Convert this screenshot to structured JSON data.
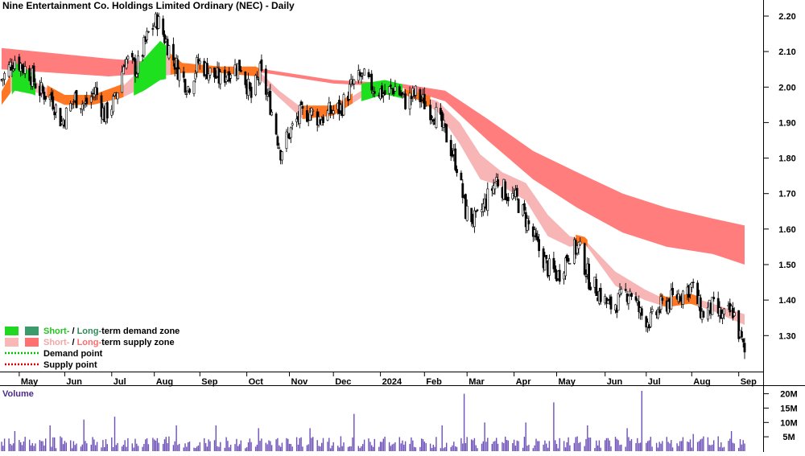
{
  "chart_data": {
    "type": "candlestick",
    "title": "Nine Entertainment Co. Holdings Limited Ordinary (NEC) - Daily",
    "price_axis": {
      "ticks": [
        "2.20",
        "2.10",
        "2.00",
        "1.90",
        "1.80",
        "1.70",
        "1.60",
        "1.50",
        "1.40",
        "1.30"
      ],
      "ylim": [
        1.22,
        2.24
      ]
    },
    "volume_axis": {
      "title": "Volume",
      "ticks": [
        "20M",
        "15M",
        "10M",
        "5M"
      ],
      "ylim": [
        0,
        21
      ]
    },
    "x_axis": {
      "ticks": [
        "May",
        "Jun",
        "Jul",
        "Aug",
        "Sep",
        "Oct",
        "Nov",
        "Dec",
        "2024",
        "Feb",
        "Mar",
        "Apr",
        "May",
        "Jun",
        "Jul",
        "Aug",
        "Sep"
      ],
      "start": "2023-04-19",
      "end": "2024-09-06"
    },
    "legend": {
      "placement": "bottom-left",
      "items": [
        {
          "parts": [
            {
              "text": "Short-",
              "color": "#22c422"
            },
            {
              "text": " / ",
              "color": "#000000"
            },
            {
              "text": "Long-",
              "color": "#2e8b57"
            },
            {
              "text": "term demand zone",
              "color": "#000000"
            }
          ],
          "swatches": [
            "#1fd81f",
            "#3b9b6a"
          ]
        },
        {
          "parts": [
            {
              "text": "Short-",
              "color": "#f4a6a6"
            },
            {
              "text": " / ",
              "color": "#000000"
            },
            {
              "text": "Long-",
              "color": "#ff6b6b"
            },
            {
              "text": "term supply zone",
              "color": "#000000"
            }
          ],
          "swatches": [
            "#f8b8b8",
            "#ff7070"
          ]
        },
        {
          "parts": [
            {
              "text": "Demand point",
              "color": "#000000"
            }
          ],
          "dotted": "#00c000"
        },
        {
          "parts": [
            {
              "text": "Supply point",
              "color": "#000000"
            }
          ],
          "dotted": "#d00000"
        }
      ]
    },
    "price_path": [
      [
        "2023-04-19",
        2.02
      ],
      [
        "2023-04-28",
        2.08
      ],
      [
        "2023-05-08",
        2.04
      ],
      [
        "2023-05-15",
        1.99
      ],
      [
        "2023-05-23",
        1.97
      ],
      [
        "2023-05-30",
        1.9
      ],
      [
        "2023-06-08",
        1.97
      ],
      [
        "2023-06-15",
        1.95
      ],
      [
        "2023-06-22",
        1.99
      ],
      [
        "2023-06-28",
        1.92
      ],
      [
        "2023-07-05",
        1.96
      ],
      [
        "2023-07-12",
        2.08
      ],
      [
        "2023-07-20",
        2.05
      ],
      [
        "2023-07-28",
        2.15
      ],
      [
        "2023-08-03",
        2.19
      ],
      [
        "2023-08-10",
        2.12
      ],
      [
        "2023-08-17",
        2.05
      ],
      [
        "2023-08-24",
        2.0
      ],
      [
        "2023-08-31",
        2.07
      ],
      [
        "2023-09-08",
        2.04
      ],
      [
        "2023-09-15",
        2.02
      ],
      [
        "2023-09-22",
        2.05
      ],
      [
        "2023-09-29",
        2.06
      ],
      [
        "2023-10-06",
        1.97
      ],
      [
        "2023-10-12",
        2.04
      ],
      [
        "2023-10-19",
        1.95
      ],
      [
        "2023-10-26",
        1.82
      ],
      [
        "2023-11-01",
        1.87
      ],
      [
        "2023-11-08",
        1.92
      ],
      [
        "2023-11-15",
        1.93
      ],
      [
        "2023-11-22",
        1.91
      ],
      [
        "2023-11-29",
        1.93
      ],
      [
        "2023-12-06",
        1.94
      ],
      [
        "2023-12-13",
        2.0
      ],
      [
        "2023-12-20",
        2.03
      ],
      [
        "2023-12-28",
        2.0
      ],
      [
        "2024-01-05",
        1.98
      ],
      [
        "2024-01-12",
        2.0
      ],
      [
        "2024-01-19",
        1.96
      ],
      [
        "2024-01-26",
        1.98
      ],
      [
        "2024-02-02",
        1.95
      ],
      [
        "2024-02-09",
        1.92
      ],
      [
        "2024-02-16",
        1.86
      ],
      [
        "2024-02-23",
        1.78
      ],
      [
        "2024-02-29",
        1.65
      ],
      [
        "2024-03-07",
        1.62
      ],
      [
        "2024-03-14",
        1.68
      ],
      [
        "2024-03-21",
        1.74
      ],
      [
        "2024-03-28",
        1.7
      ],
      [
        "2024-04-04",
        1.68
      ],
      [
        "2024-04-11",
        1.62
      ],
      [
        "2024-04-18",
        1.55
      ],
      [
        "2024-04-25",
        1.49
      ],
      [
        "2024-05-02",
        1.47
      ],
      [
        "2024-05-09",
        1.53
      ],
      [
        "2024-05-16",
        1.55
      ],
      [
        "2024-05-23",
        1.46
      ],
      [
        "2024-05-30",
        1.42
      ],
      [
        "2024-06-06",
        1.38
      ],
      [
        "2024-06-13",
        1.4
      ],
      [
        "2024-06-20",
        1.43
      ],
      [
        "2024-06-27",
        1.36
      ],
      [
        "2024-07-04",
        1.34
      ],
      [
        "2024-07-11",
        1.38
      ],
      [
        "2024-07-18",
        1.4
      ],
      [
        "2024-07-25",
        1.42
      ],
      [
        "2024-08-01",
        1.44
      ],
      [
        "2024-08-08",
        1.36
      ],
      [
        "2024-08-15",
        1.38
      ],
      [
        "2024-08-22",
        1.35
      ],
      [
        "2024-08-29",
        1.37
      ],
      [
        "2024-09-06",
        1.25
      ]
    ],
    "zones": {
      "long": {
        "upper": [
          [
            "2023-04-19",
            2.11
          ],
          [
            "2023-07-01",
            2.08
          ],
          [
            "2023-09-01",
            2.06
          ],
          [
            "2023-10-15",
            2.05
          ],
          [
            "2023-12-01",
            2.02
          ],
          [
            "2024-01-15",
            2.01
          ],
          [
            "2024-02-15",
            1.99
          ],
          [
            "2024-03-15",
            1.91
          ],
          [
            "2024-04-15",
            1.82
          ],
          [
            "2024-05-15",
            1.76
          ],
          [
            "2024-06-15",
            1.7
          ],
          [
            "2024-07-15",
            1.66
          ],
          [
            "2024-08-15",
            1.63
          ],
          [
            "2024-09-06",
            1.61
          ]
        ],
        "lower": [
          [
            "2023-04-19",
            2.05
          ],
          [
            "2023-07-01",
            2.03
          ],
          [
            "2023-09-01",
            2.05
          ],
          [
            "2023-10-15",
            2.04
          ],
          [
            "2023-12-01",
            2.01
          ],
          [
            "2024-01-15",
            2.0
          ],
          [
            "2024-02-15",
            1.96
          ],
          [
            "2024-03-15",
            1.85
          ],
          [
            "2024-04-15",
            1.74
          ],
          [
            "2024-05-15",
            1.66
          ],
          [
            "2024-06-15",
            1.59
          ],
          [
            "2024-07-15",
            1.55
          ],
          [
            "2024-08-15",
            1.53
          ],
          [
            "2024-09-06",
            1.5
          ]
        ]
      },
      "short": {
        "upper": [
          [
            "2023-04-19",
            1.98
          ],
          [
            "2023-04-28",
            2.05
          ],
          [
            "2023-05-10",
            2.02
          ],
          [
            "2023-06-01",
            1.97
          ],
          [
            "2023-06-20",
            1.97
          ],
          [
            "2023-07-10",
            2.0
          ],
          [
            "2023-07-25",
            2.06
          ],
          [
            "2023-08-05",
            2.11
          ],
          [
            "2023-08-20",
            2.06
          ],
          [
            "2023-09-15",
            2.05
          ],
          [
            "2023-10-10",
            2.05
          ],
          [
            "2023-10-25",
            1.99
          ],
          [
            "2023-11-10",
            1.94
          ],
          [
            "2023-12-01",
            1.94
          ],
          [
            "2023-12-20",
            1.99
          ],
          [
            "2024-01-05",
            2.0
          ],
          [
            "2024-01-25",
            1.98
          ],
          [
            "2024-02-10",
            1.96
          ],
          [
            "2024-02-25",
            1.9
          ],
          [
            "2024-03-10",
            1.81
          ],
          [
            "2024-03-25",
            1.76
          ],
          [
            "2024-04-10",
            1.73
          ],
          [
            "2024-04-25",
            1.64
          ],
          [
            "2024-05-10",
            1.58
          ],
          [
            "2024-05-20",
            1.57
          ],
          [
            "2024-06-10",
            1.48
          ],
          [
            "2024-06-30",
            1.43
          ],
          [
            "2024-07-15",
            1.4
          ],
          [
            "2024-07-31",
            1.41
          ],
          [
            "2024-08-15",
            1.39
          ],
          [
            "2024-09-06",
            1.36
          ]
        ],
        "lower": [
          [
            "2023-04-19",
            1.95
          ],
          [
            "2023-04-28",
            2.0
          ],
          [
            "2023-05-10",
            1.99
          ],
          [
            "2023-06-01",
            1.95
          ],
          [
            "2023-06-20",
            1.95
          ],
          [
            "2023-07-10",
            1.97
          ],
          [
            "2023-07-25",
            2.0
          ],
          [
            "2023-08-05",
            2.03
          ],
          [
            "2023-08-20",
            2.04
          ],
          [
            "2023-09-15",
            2.04
          ],
          [
            "2023-10-10",
            2.03
          ],
          [
            "2023-10-25",
            1.97
          ],
          [
            "2023-11-10",
            1.91
          ],
          [
            "2023-12-01",
            1.92
          ],
          [
            "2023-12-20",
            1.97
          ],
          [
            "2024-01-05",
            1.99
          ],
          [
            "2024-01-25",
            1.97
          ],
          [
            "2024-02-10",
            1.93
          ],
          [
            "2024-02-25",
            1.84
          ],
          [
            "2024-03-10",
            1.74
          ],
          [
            "2024-03-25",
            1.72
          ],
          [
            "2024-04-10",
            1.68
          ],
          [
            "2024-04-25",
            1.58
          ],
          [
            "2024-05-10",
            1.55
          ],
          [
            "2024-05-20",
            1.56
          ],
          [
            "2024-06-10",
            1.44
          ],
          [
            "2024-06-30",
            1.4
          ],
          [
            "2024-07-15",
            1.38
          ],
          [
            "2024-07-31",
            1.39
          ],
          [
            "2024-08-15",
            1.37
          ],
          [
            "2024-09-06",
            1.33
          ]
        ]
      }
    },
    "volume_spikes": [
      [
        "2023-04-28",
        7
      ],
      [
        "2023-05-22",
        9
      ],
      [
        "2023-06-14",
        11
      ],
      [
        "2023-07-05",
        12
      ],
      [
        "2023-08-16",
        9
      ],
      [
        "2023-09-12",
        9
      ],
      [
        "2023-10-11",
        8
      ],
      [
        "2023-11-15",
        8
      ],
      [
        "2023-12-15",
        13
      ],
      [
        "2024-02-13",
        9
      ],
      [
        "2024-02-28",
        20
      ],
      [
        "2024-03-13",
        10
      ],
      [
        "2024-04-10",
        10
      ],
      [
        "2024-04-29",
        17
      ],
      [
        "2024-05-22",
        9
      ],
      [
        "2024-06-18",
        8
      ],
      [
        "2024-06-28",
        21
      ],
      [
        "2024-08-02",
        6
      ],
      [
        "2024-08-28",
        7
      ]
    ],
    "colors": {
      "long_supply": "#ff6f6f",
      "short_supply": "#f7b5b5",
      "short_demand": "#1fe01f",
      "zone_transition": "#ff7722",
      "candle": "#000000",
      "volume_bar": "#6c4fb8"
    },
    "grid": false
  }
}
